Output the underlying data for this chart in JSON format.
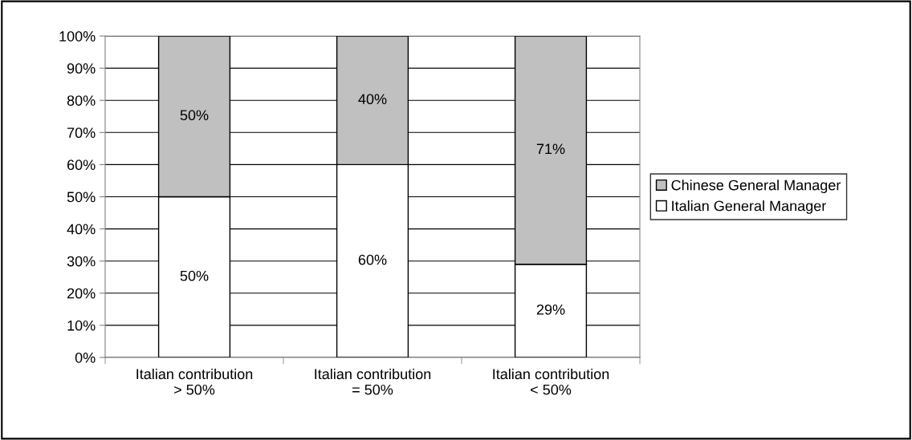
{
  "chart_data": {
    "type": "bar",
    "stacked": true,
    "categories": [
      "Italian contribution\n> 50%",
      "Italian contribution\n= 50%",
      "Italian contribution\n< 50%"
    ],
    "series": [
      {
        "name": "Italian General Manager",
        "color": "#ffffff",
        "values": [
          50,
          60,
          29
        ],
        "value_labels": [
          "50%",
          "60%",
          "29%"
        ]
      },
      {
        "name": "Chinese General Manager",
        "color": "#c0c0c0",
        "values": [
          50,
          40,
          71
        ],
        "value_labels": [
          "50%",
          "40%",
          "71%"
        ]
      }
    ],
    "ylim": [
      0,
      100
    ],
    "yticks": [
      {
        "value": 0,
        "label": "0%"
      },
      {
        "value": 10,
        "label": "10%"
      },
      {
        "value": 20,
        "label": "20%"
      },
      {
        "value": 30,
        "label": "30%"
      },
      {
        "value": 40,
        "label": "40%"
      },
      {
        "value": 50,
        "label": "50%"
      },
      {
        "value": 60,
        "label": "60%"
      },
      {
        "value": 70,
        "label": "70%"
      },
      {
        "value": 80,
        "label": "80%"
      },
      {
        "value": 90,
        "label": "90%"
      },
      {
        "value": 100,
        "label": "100%"
      }
    ],
    "grid": "y",
    "legend": "right"
  }
}
